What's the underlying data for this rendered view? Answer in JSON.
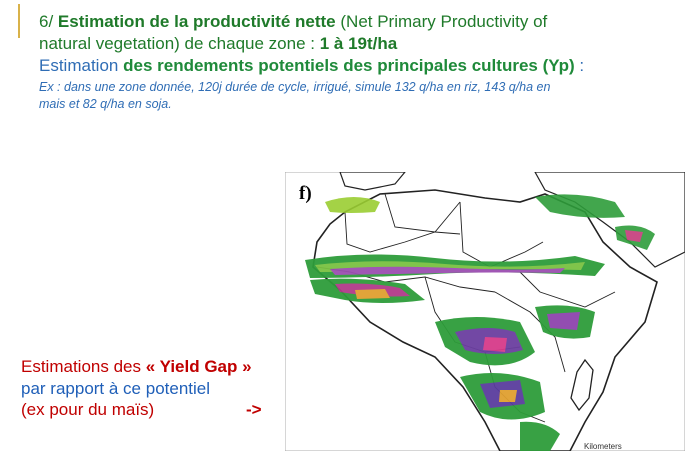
{
  "header": {
    "line1": {
      "number": "6/",
      "title": "Estimation de la productivité nette",
      "paren": "(Net Primary Productivity of"
    },
    "line2": {
      "text": "natural vegetation) de chaque zone :",
      "value": "1 à 19t/ha"
    },
    "line3": {
      "lead": "Estimation",
      "title": "des rendements potentiels des principales cultures (Yp)",
      "colon": ":"
    },
    "example_line1": "Ex : dans une zone donnée, 120j durée de cycle, irrigué, simule 132 q/ha en riz, 143 q/ha en",
    "example_line2": "mais et 82 q/ha en soja."
  },
  "note": {
    "lead": "Estimations des",
    "quote": "« Yield Gap »",
    "line2": "par rapport à ce potentiel",
    "line3": "(ex pour du maïs)",
    "arrow": "->"
  },
  "map": {
    "panel_label": "f)",
    "scale_label": "Kilometers"
  },
  "colors": {
    "dark_green": "#1f7a2a",
    "blue": "#2f6db5",
    "red": "#c00000",
    "accent": "#d9b24a"
  }
}
